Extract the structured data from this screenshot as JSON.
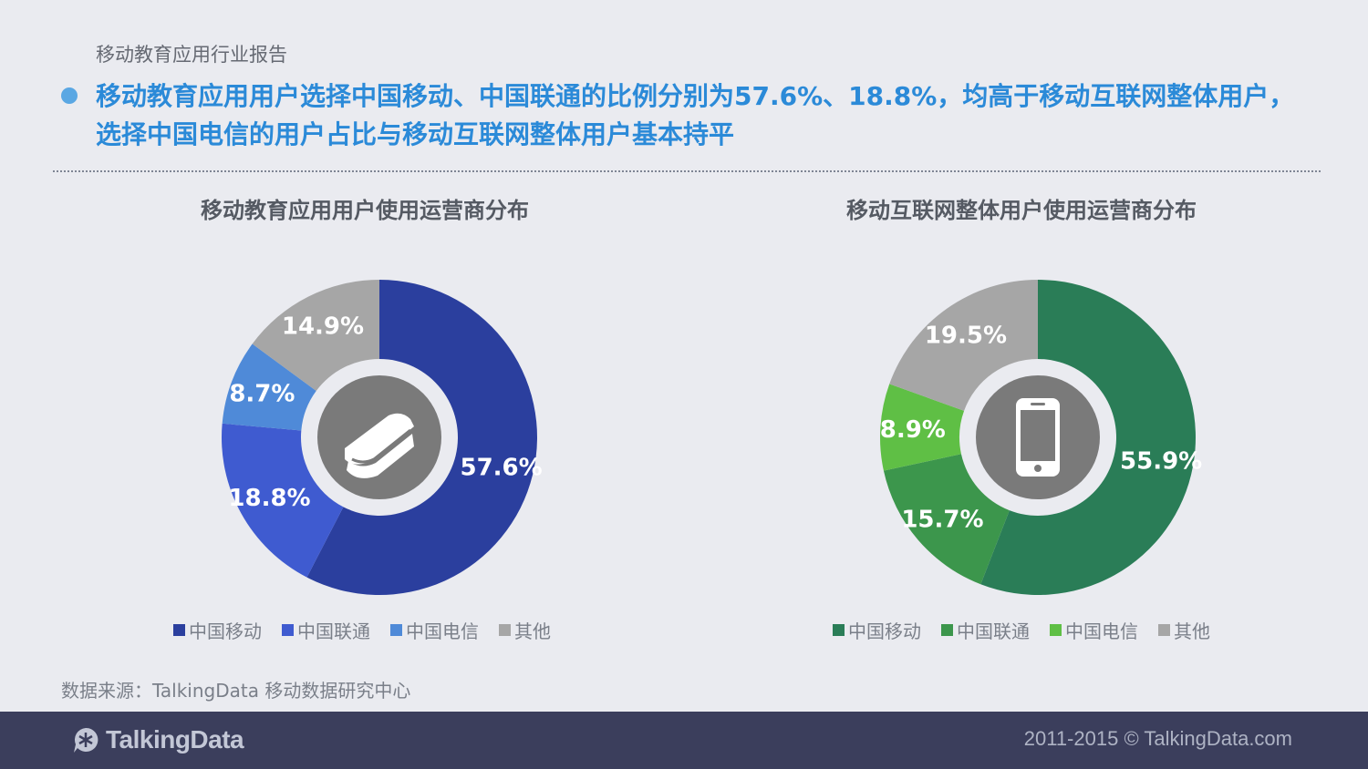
{
  "header": {
    "report_name": "移动教育应用行业报告",
    "headline": "移动教育应用用户选择中国移动、中国联通的比例分别为57.6%、18.8%，均高于移动互联网整体用户，选择中国电信的用户占比与移动互联网整体用户基本持平"
  },
  "colors": {
    "background": "#eaebf0",
    "headline": "#2b8ad8",
    "bullet": "#5aa7e3",
    "footer": "#3b3e5c"
  },
  "chart_data": [
    {
      "type": "pie",
      "style": "donut",
      "title": "移动教育应用用户使用运营商分布",
      "center_icon": "book-icon",
      "categories": [
        "中国移动",
        "中国联通",
        "中国电信",
        "其他"
      ],
      "values": [
        57.6,
        18.8,
        8.7,
        14.9
      ],
      "labels": [
        "57.6%",
        "18.8%",
        "8.7%",
        "14.9%"
      ],
      "colors": [
        "#2b3f9e",
        "#3f5bd0",
        "#4f8ad8",
        "#a6a6a6"
      ],
      "legend": "bottom"
    },
    {
      "type": "pie",
      "style": "donut",
      "title": "移动互联网整体用户使用运营商分布",
      "center_icon": "smartphone-icon",
      "categories": [
        "中国移动",
        "中国联通",
        "中国电信",
        "其他"
      ],
      "values": [
        55.9,
        15.7,
        8.9,
        19.5
      ],
      "labels": [
        "55.9%",
        "15.7%",
        "8.9%",
        "19.5%"
      ],
      "colors": [
        "#2a7d57",
        "#3c964c",
        "#5fbf45",
        "#a6a6a6"
      ],
      "legend": "bottom"
    }
  ],
  "source": "数据来源：TalkingData 移动数据研究中心",
  "footer": {
    "logo_text": "TalkingData",
    "copyright": "2011-2015 © TalkingData.com"
  }
}
